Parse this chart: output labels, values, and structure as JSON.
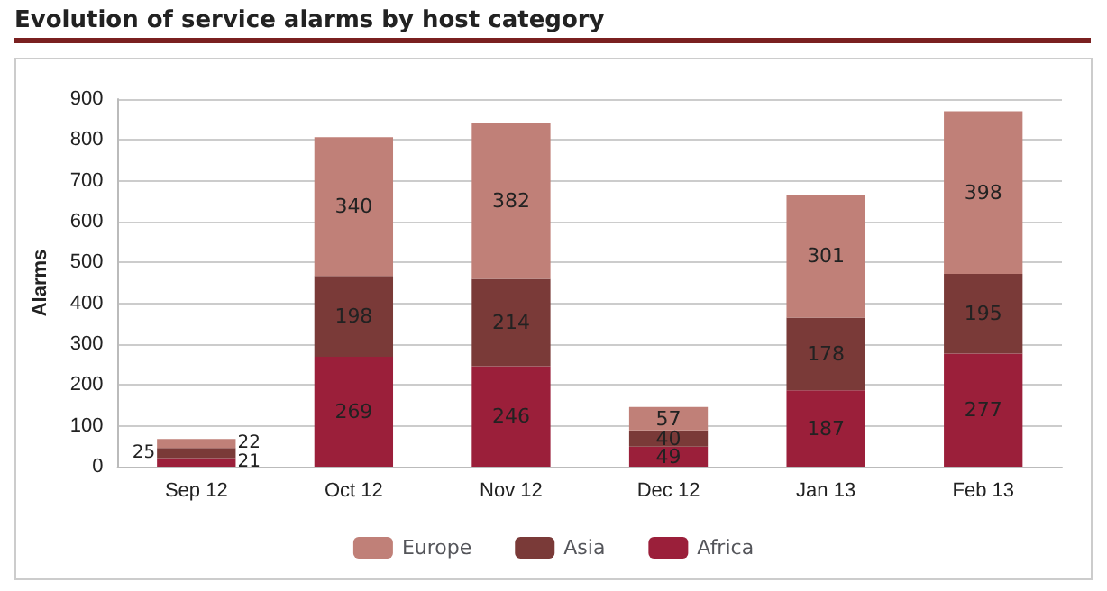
{
  "chart_data": {
    "type": "bar",
    "title": "Evolution of service alarms by host category",
    "ylabel": "Alarms",
    "categories": [
      "Sep 12",
      "Oct 12",
      "Nov 12",
      "Dec 12",
      "Jan 13",
      "Feb 13"
    ],
    "series": [
      {
        "name": "Africa",
        "color": "#9b1f3a",
        "values": [
          21,
          269,
          246,
          49,
          187,
          277
        ]
      },
      {
        "name": "Asia",
        "color": "#7a3a38",
        "values": [
          25,
          198,
          214,
          40,
          178,
          195
        ]
      },
      {
        "name": "Europe",
        "color": "#c08078",
        "values": [
          22,
          340,
          382,
          57,
          301,
          398
        ]
      }
    ],
    "stacked": true,
    "data_labels": true,
    "ylim": [
      0,
      900
    ],
    "yticks": [
      0,
      100,
      200,
      300,
      400,
      500,
      600,
      700,
      800,
      900
    ],
    "grid": "y",
    "legend": "bottom"
  }
}
